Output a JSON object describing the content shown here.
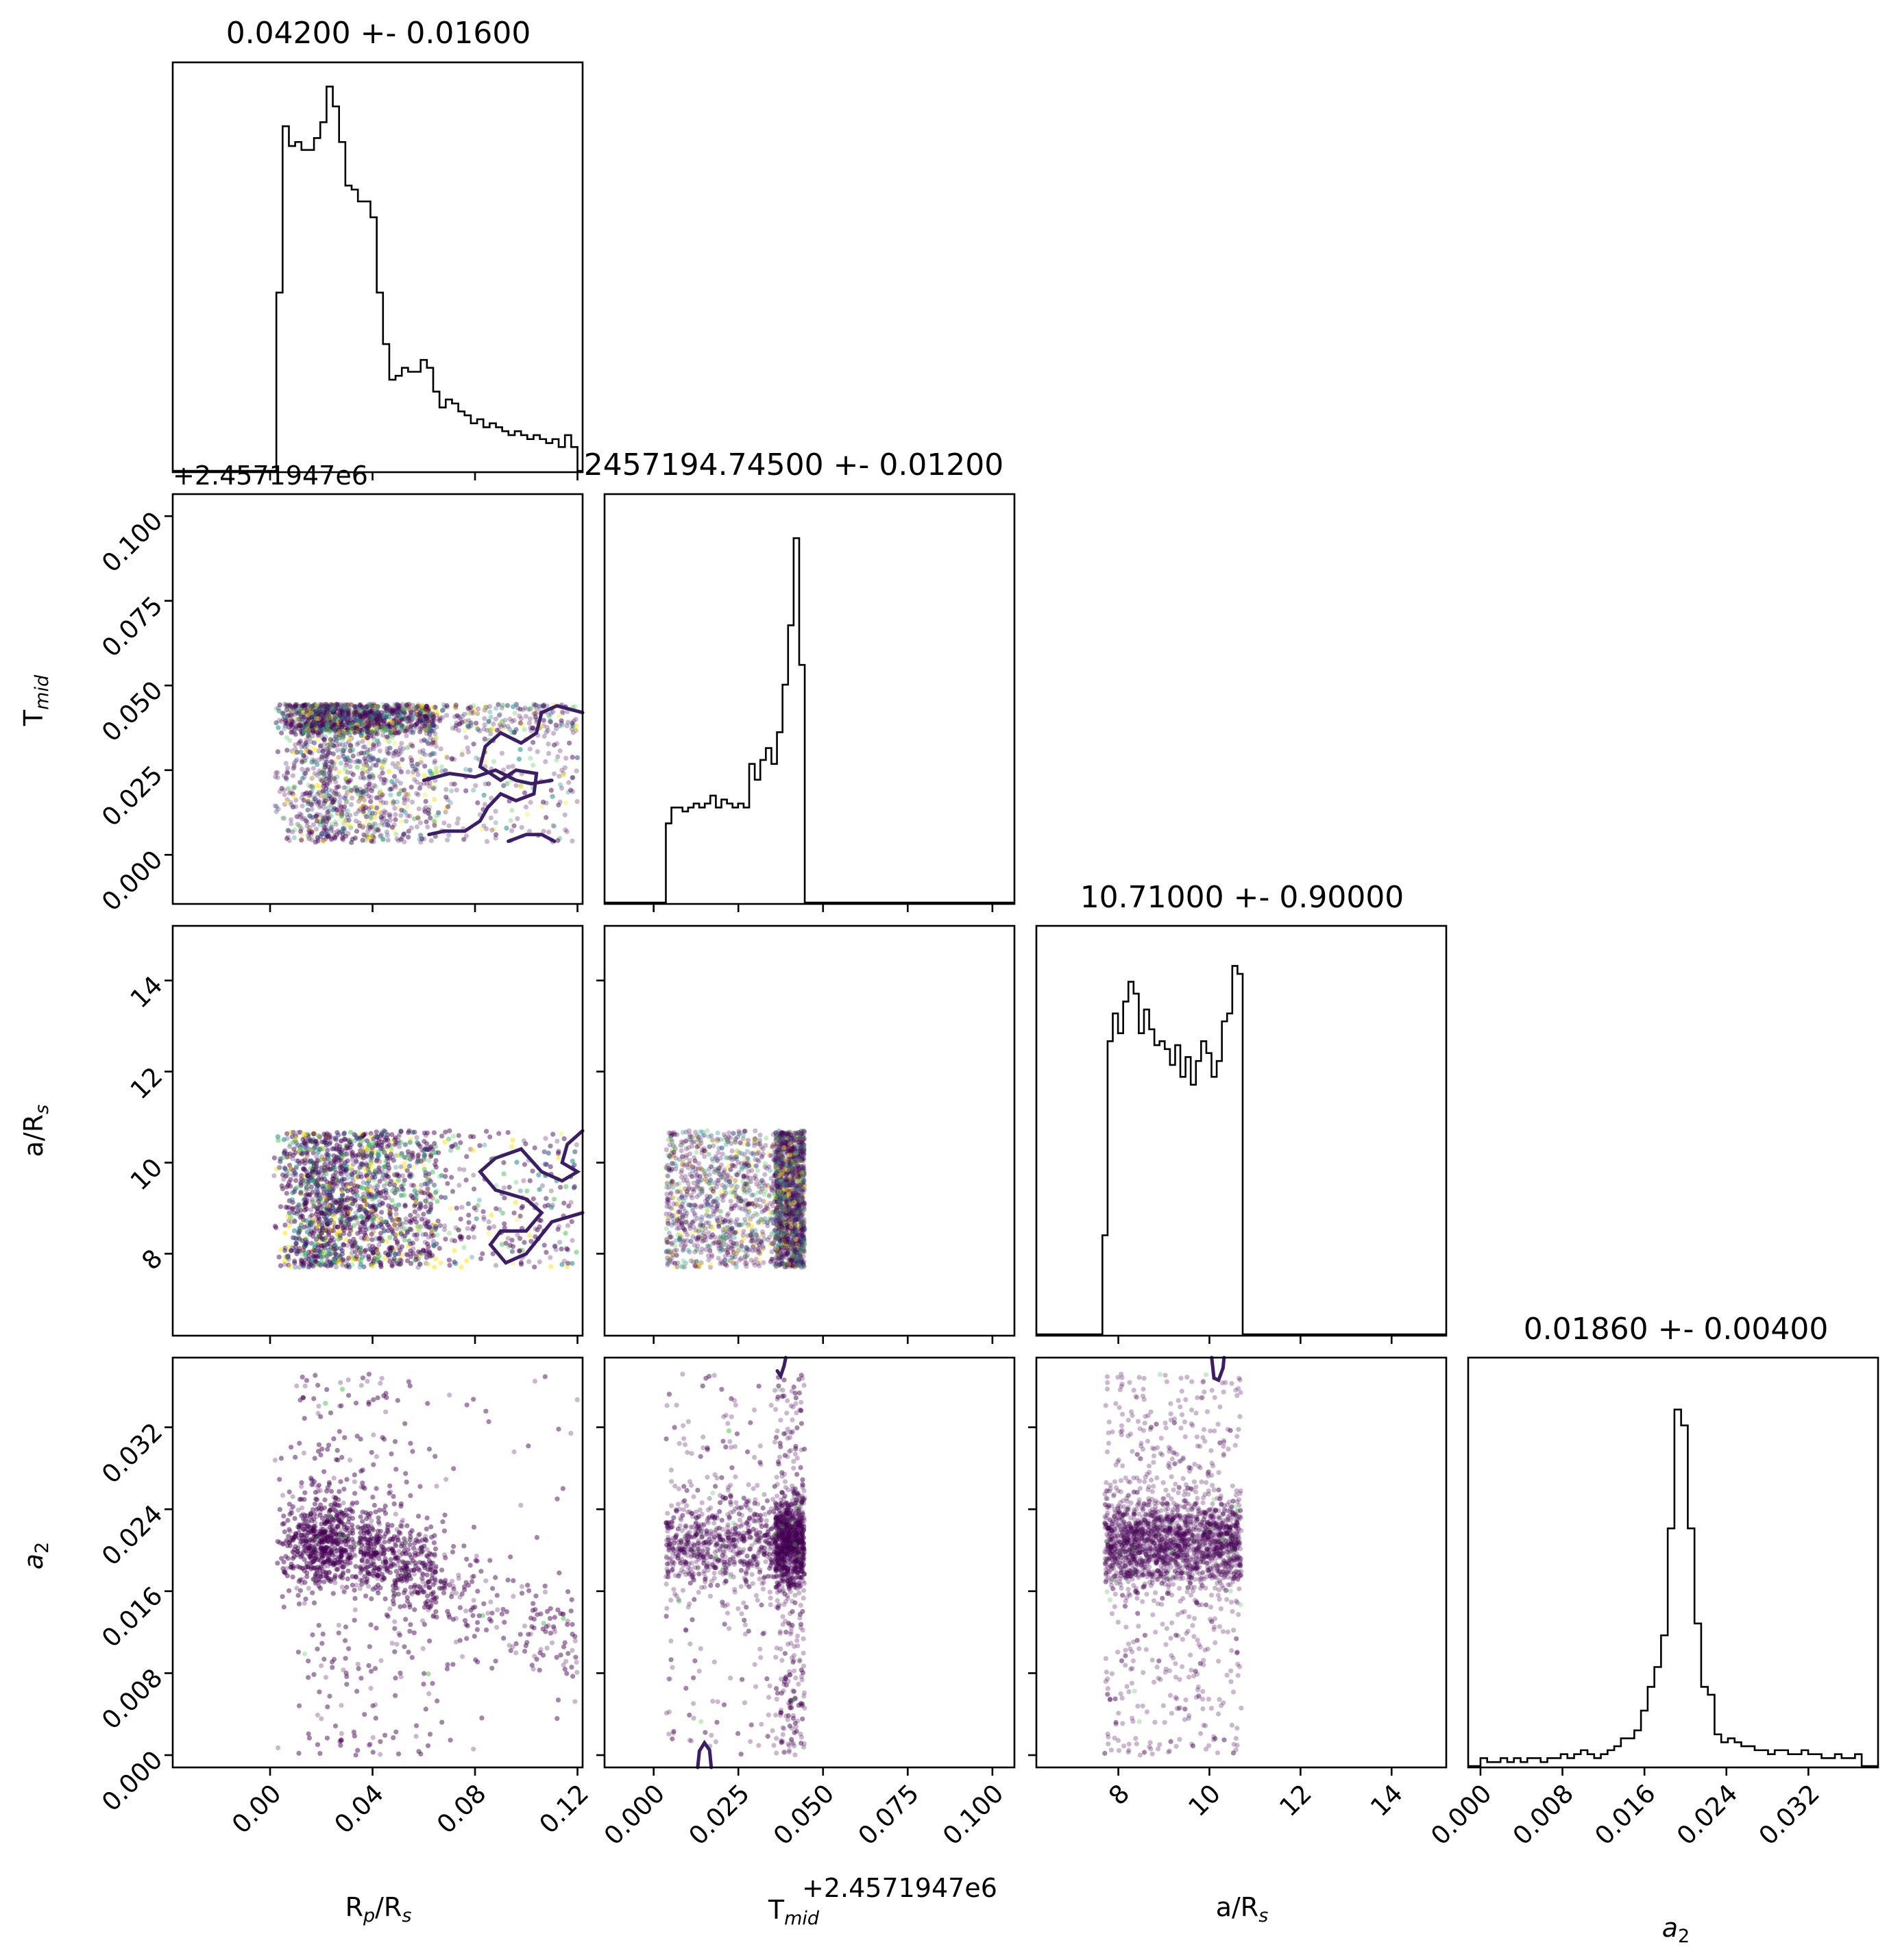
{
  "chart_data": {
    "type": "corner",
    "parameters": [
      {
        "key": "rprs",
        "label": "R",
        "sub": "p",
        "label_mid": "/R",
        "sub2": "s",
        "range": [
          -0.038,
          0.122
        ],
        "ticks": [
          "0.00",
          "0.04",
          "0.08",
          "0.12"
        ],
        "tick_values": [
          0,
          0.04,
          0.08,
          0.12
        ]
      },
      {
        "key": "tmid",
        "label": "T",
        "sub": "mid",
        "range": [
          -0.0145,
          0.1065
        ],
        "ticks": [
          "0.000",
          "0.025",
          "0.050",
          "0.075",
          "0.100"
        ],
        "tick_values": [
          0,
          0.025,
          0.05,
          0.075,
          0.1
        ],
        "offset": "+2.4571947e6"
      },
      {
        "key": "ars",
        "label": "a/R",
        "sub": "s",
        "range": [
          6.2,
          15.2
        ],
        "ticks": [
          "8",
          "10",
          "12",
          "14"
        ],
        "tick_values": [
          8,
          10,
          12,
          14
        ]
      },
      {
        "key": "a2",
        "label": "a",
        "sub": "2",
        "range": [
          -0.0012,
          0.0388
        ],
        "ticks": [
          "0.000",
          "0.008",
          "0.016",
          "0.024",
          "0.032"
        ],
        "tick_values": [
          0,
          0.008,
          0.016,
          0.024,
          0.032
        ]
      }
    ],
    "titles": [
      "0.04200 +- 0.01600",
      "2457194.74500 +- 0.01200",
      "10.71000 +- 0.90000",
      "0.01860 +- 0.00400"
    ],
    "offset_texts": [
      {
        "label": "+2.4571947e6",
        "where": "top-left of T_mid row axis"
      },
      {
        "label": "+2.4571947e6",
        "where": "below T_mid column x axis"
      }
    ],
    "histograms": [
      {
        "param": "rprs",
        "bins": [
          0.0,
          0.12
        ],
        "values": [
          0,
          0.45,
          0.87,
          0.82,
          0.83,
          0.81,
          0.81,
          0.84,
          0.88,
          0.97,
          0.92,
          0.83,
          0.72,
          0.71,
          0.68,
          0.68,
          0.64,
          0.45,
          0.32,
          0.23,
          0.24,
          0.26,
          0.25,
          0.25,
          0.28,
          0.26,
          0.2,
          0.16,
          0.18,
          0.17,
          0.15,
          0.14,
          0.12,
          0.13,
          0.11,
          0.12,
          0.11,
          0.1,
          0.09,
          0.1,
          0.09,
          0.08,
          0.09,
          0.08,
          0.07,
          0.08,
          0.06,
          0.09,
          0.06
        ]
      },
      {
        "param": "tmid",
        "bins": [
          0.0036,
          0.0446
        ],
        "values": [
          0.2,
          0.24,
          0.24,
          0.23,
          0.24,
          0.25,
          0.24,
          0.25,
          0.27,
          0.24,
          0.26,
          0.25,
          0.24,
          0.25,
          0.24,
          0.35,
          0.31,
          0.36,
          0.39,
          0.35,
          0.43,
          0.55,
          0.7,
          0.92,
          0.6
        ]
      },
      {
        "param": "ars",
        "bins": [
          7.65,
          10.73
        ],
        "values": [
          0.25,
          0.74,
          0.81,
          0.76,
          0.84,
          0.89,
          0.86,
          0.76,
          0.82,
          0.77,
          0.73,
          0.74,
          0.72,
          0.68,
          0.73,
          0.65,
          0.7,
          0.63,
          0.69,
          0.74,
          0.71,
          0.65,
          0.69,
          0.79,
          0.81,
          0.93,
          0.91
        ]
      },
      {
        "param": "a2",
        "bins": [
          0.0,
          0.0372
        ],
        "values": [
          0.02,
          0.01,
          0.01,
          0.02,
          0.01,
          0.02,
          0.01,
          0.02,
          0.02,
          0.01,
          0.02,
          0.02,
          0.03,
          0.02,
          0.03,
          0.04,
          0.03,
          0.02,
          0.03,
          0.04,
          0.05,
          0.07,
          0.07,
          0.09,
          0.14,
          0.2,
          0.25,
          0.33,
          0.6,
          0.9,
          0.86,
          0.6,
          0.36,
          0.2,
          0.18,
          0.08,
          0.06,
          0.07,
          0.06,
          0.05,
          0.05,
          0.04,
          0.04,
          0.03,
          0.04,
          0.04,
          0.03,
          0.03,
          0.04,
          0.03,
          0.03,
          0.02,
          0.02,
          0.03,
          0.02,
          0.02,
          0.03
        ]
      }
    ],
    "colors": {
      "axes": "#000000",
      "contour": "#3b1e66",
      "points": [
        "#440154",
        "#3b528b",
        "#21918c",
        "#5ec962",
        "#fde725"
      ]
    }
  }
}
